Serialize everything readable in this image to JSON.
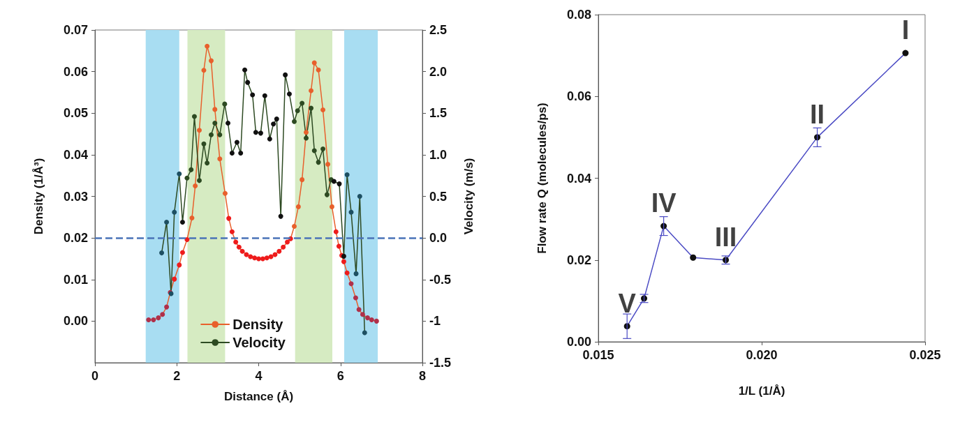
{
  "chart_data": [
    {
      "type": "line",
      "xlabel": "Distance (Å)",
      "ylabel": "Density (1/Å³)",
      "y2label": "Velocity (m/s)",
      "xlim": [
        0,
        8
      ],
      "xticks": [
        0,
        2,
        4,
        6,
        8
      ],
      "ylim": [
        -0.01,
        0.07
      ],
      "yticks": [
        {
          "value": 0,
          "label": "0.00"
        },
        {
          "value": 0.01,
          "label": "0.01"
        },
        {
          "value": 0.02,
          "label": "0.02"
        },
        {
          "value": 0.03,
          "label": "0.03"
        },
        {
          "value": 0.04,
          "label": "0.04"
        },
        {
          "value": 0.05,
          "label": "0.05"
        },
        {
          "value": 0.06,
          "label": "0.06"
        },
        {
          "value": 0.07,
          "label": "0.07"
        }
      ],
      "y2lim": [
        -1.5,
        2.5
      ],
      "y2ticks": [
        -1.5,
        -1,
        -0.5,
        {
          "value": 0,
          "label": "0.0"
        },
        0.5,
        {
          "value": 1,
          "label": "1.0"
        },
        1.5,
        {
          "value": 2,
          "label": "2.0"
        },
        2.5
      ],
      "grid": false,
      "legend": "bottom",
      "marker": "circle",
      "line_style": "solid",
      "bands": [
        {
          "axis": "x",
          "from": 1.24,
          "to": 2.06,
          "color": "#a8ddf2"
        },
        {
          "axis": "x",
          "from": 2.26,
          "to": 3.18,
          "color": "#d6ebc2"
        },
        {
          "axis": "x",
          "from": 4.89,
          "to": 5.8,
          "color": "#d6ebc2"
        },
        {
          "axis": "x",
          "from": 6.09,
          "to": 6.91,
          "color": "#a8ddf2"
        }
      ],
      "ref_lines": [
        {
          "axis": "y2",
          "value": 0,
          "color": "#4a73b8",
          "line_style": "dashed"
        }
      ],
      "series": [
        {
          "name": "Density",
          "color": "#e8602c",
          "x": [
            1.31,
            1.43,
            1.55,
            1.65,
            1.75,
            1.84,
            1.94,
            2.06,
            2.14,
            2.25,
            2.37,
            2.45,
            2.55,
            2.66,
            2.74,
            2.84,
            2.93,
            3.05,
            3.18,
            3.27,
            3.35,
            3.44,
            3.52,
            3.6,
            3.7,
            3.8,
            3.9,
            4.0,
            4.1,
            4.2,
            4.3,
            4.4,
            4.5,
            4.6,
            4.7,
            4.78,
            4.87,
            4.97,
            5.06,
            5.16,
            5.28,
            5.36,
            5.46,
            5.57,
            5.69,
            5.79,
            5.89,
            5.96,
            6.03,
            6.08,
            6.16,
            6.26,
            6.37,
            6.45,
            6.54,
            6.66,
            6.76,
            6.88
          ],
          "values": [
            0.0003,
            0.0003,
            0.0008,
            0.0016,
            0.0034,
            0.0069,
            0.0101,
            0.0135,
            0.0165,
            0.0196,
            0.0248,
            0.0325,
            0.0459,
            0.0603,
            0.0661,
            0.0626,
            0.0509,
            0.039,
            0.0307,
            0.0247,
            0.0215,
            0.019,
            0.0178,
            0.0168,
            0.016,
            0.0155,
            0.0152,
            0.015,
            0.015,
            0.0152,
            0.0155,
            0.016,
            0.0168,
            0.0178,
            0.019,
            0.0198,
            0.0228,
            0.0275,
            0.034,
            0.0454,
            0.0554,
            0.0621,
            0.0604,
            0.0508,
            0.0377,
            0.0275,
            0.0215,
            0.018,
            0.0158,
            0.0143,
            0.0116,
            0.009,
            0.0056,
            0.0028,
            0.0016,
            0.0008,
            0.0003,
            0
          ],
          "colors": [
            "#b0304a",
            "#b0304a",
            "#b0304a",
            "#b0304a",
            "#b0304a",
            "#b0304a",
            "#ee1c1c",
            "#ee1c1c",
            "#ee1c1c",
            "#ee1c1c",
            "#e8602c",
            "#e8602c",
            "#e8602c",
            "#e8602c",
            "#e8602c",
            "#e8602c",
            "#e8602c",
            "#e8602c",
            "#e8602c",
            "#ee1c1c",
            "#ee1c1c",
            "#ee1c1c",
            "#ee1c1c",
            "#ee1c1c",
            "#ee1c1c",
            "#ee1c1c",
            "#ee1c1c",
            "#ee1c1c",
            "#ee1c1c",
            "#ee1c1c",
            "#ee1c1c",
            "#ee1c1c",
            "#ee1c1c",
            "#ee1c1c",
            "#ee1c1c",
            "#ee1c1c",
            "#e8602c",
            "#e8602c",
            "#e8602c",
            "#e8602c",
            "#e8602c",
            "#e8602c",
            "#e8602c",
            "#e8602c",
            "#e8602c",
            "#e8602c",
            "#ee1c1c",
            "#ee1c1c",
            "#ee1c1c",
            "#ee1c1c",
            "#ee1c1c",
            "#b0304a",
            "#b0304a",
            "#b0304a",
            "#b0304a",
            "#b0304a",
            "#b0304a",
            "#b0304a"
          ]
        },
        {
          "name": "Velocity",
          "color": "#2d4a22",
          "axis": "y2",
          "x": [
            1.63,
            1.75,
            1.86,
            1.94,
            2.06,
            2.14,
            2.25,
            2.35,
            2.43,
            2.55,
            2.66,
            2.74,
            2.84,
            2.93,
            3.05,
            3.17,
            3.25,
            3.35,
            3.47,
            3.56,
            3.66,
            3.73,
            3.85,
            3.93,
            4.05,
            4.15,
            4.27,
            4.36,
            4.44,
            4.54,
            4.65,
            4.75,
            4.87,
            4.95,
            5.06,
            5.16,
            5.28,
            5.36,
            5.46,
            5.57,
            5.67,
            5.77,
            5.84,
            5.97,
            6.08,
            6.16,
            6.26,
            6.38,
            6.47,
            6.59
          ],
          "values": [
            -0.18,
            0.19,
            -0.67,
            0.31,
            0.77,
            0.19,
            0.72,
            0.82,
            1.46,
            0.69,
            1.13,
            0.9,
            1.24,
            1.38,
            1.24,
            1.61,
            1.38,
            1.02,
            1.15,
            1.02,
            2.02,
            1.87,
            1.72,
            1.27,
            1.26,
            1.71,
            1.19,
            1.37,
            1.43,
            0.26,
            1.96,
            1.73,
            1.4,
            1.53,
            1.62,
            1.2,
            1.56,
            1.05,
            0.91,
            1.07,
            0.52,
            0.7,
            0.68,
            0.65,
            -0.22,
            0.76,
            0.31,
            -0.43,
            0.5,
            -1.14
          ],
          "colors": [
            "#1d4f62",
            "#1d4f62",
            "#1d4f62",
            "#1d4f62",
            "#1d4f62",
            "#111111",
            "#2d4a22",
            "#2d4a22",
            "#2d4a22",
            "#2d4a22",
            "#2d4a22",
            "#2d4a22",
            "#2d4a22",
            "#2d4a22",
            "#2d4a22",
            "#2d4a22",
            "#111111",
            "#111111",
            "#111111",
            "#111111",
            "#111111",
            "#111111",
            "#111111",
            "#111111",
            "#111111",
            "#111111",
            "#111111",
            "#111111",
            "#111111",
            "#111111",
            "#111111",
            "#111111",
            "#2d4a22",
            "#2d4a22",
            "#2d4a22",
            "#2d4a22",
            "#2d4a22",
            "#2d4a22",
            "#2d4a22",
            "#2d4a22",
            "#2d4a22",
            "#2d4a22",
            "#111111",
            "#111111",
            "#111111",
            "#1d4f62",
            "#1d4f62",
            "#1d4f62",
            "#1d4f62",
            "#1d4f62"
          ]
        }
      ]
    },
    {
      "type": "line",
      "xlabel": "1/L (1/Å)",
      "ylabel": "Flow rate Q (molecules/ps)",
      "xlim": [
        0.015,
        0.025
      ],
      "xticks": [
        {
          "value": 0.015,
          "label": "0.015"
        },
        {
          "value": 0.02,
          "label": "0.020"
        },
        {
          "value": 0.025,
          "label": "0.025"
        }
      ],
      "ylim": [
        0,
        0.08
      ],
      "yticks": [
        {
          "value": 0,
          "label": "0.00"
        },
        {
          "value": 0.02,
          "label": "0.02"
        },
        {
          "value": 0.04,
          "label": "0.04"
        },
        {
          "value": 0.06,
          "label": "0.06"
        },
        {
          "value": 0.08,
          "label": "0.08"
        }
      ],
      "grid": false,
      "legend": false,
      "marker": "circle",
      "line_style": "solid",
      "annotations": [
        {
          "text": "V",
          "x": 0.01588,
          "y": 0.0038
        },
        {
          "text": "IV",
          "x": 0.017,
          "y": 0.0283
        },
        {
          "text": "III",
          "x": 0.0189,
          "y": 0.02
        },
        {
          "text": "II",
          "x": 0.0217,
          "y": 0.05
        },
        {
          "text": "I",
          "x": 0.0244,
          "y": 0.0706
        }
      ],
      "series": [
        {
          "color": "#4b4bc4",
          "x": [
            0.01588,
            0.0164,
            0.017,
            0.0179,
            0.0189,
            0.0217,
            0.0244
          ],
          "values": [
            0.0038,
            0.0106,
            0.0283,
            0.0206,
            0.02,
            0.05,
            0.0706
          ],
          "errors": [
            0.003,
            0.001,
            0.0023,
            null,
            0.001,
            0.0023,
            null
          ],
          "colors": [
            "#111111",
            "#111111",
            "#111111",
            "#111111",
            "#111111",
            "#111111",
            "#111111"
          ]
        }
      ]
    }
  ]
}
